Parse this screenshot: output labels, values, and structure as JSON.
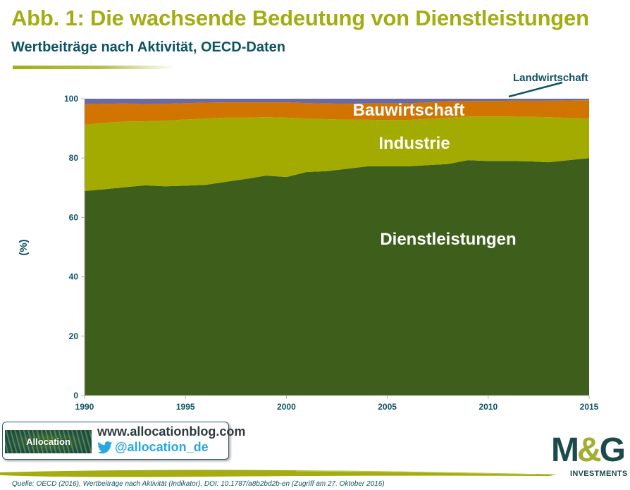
{
  "header": {
    "title": "Abb. 1: Die wachsende Bedeutung von Dienstleistungen",
    "subtitle": "Wertbeiträge nach Aktivität, OECD-Daten"
  },
  "chart_data": {
    "type": "area",
    "stacked": true,
    "title": "Abb. 1: Die wachsende Bedeutung von Dienstleistungen",
    "subtitle": "Wertbeiträge nach Aktivität, OECD-Daten",
    "xlabel": "",
    "ylabel": "(%)",
    "xlim": [
      1990,
      2015
    ],
    "ylim": [
      0,
      100
    ],
    "x_ticks": [
      "1990",
      "1995",
      "2000",
      "2005",
      "2010",
      "2015"
    ],
    "y_ticks": [
      "0",
      "20",
      "40",
      "60",
      "80",
      "100"
    ],
    "grid": false,
    "legend": "inline labels",
    "x": [
      1990,
      1991,
      1992,
      1993,
      1994,
      1995,
      1996,
      1997,
      1998,
      1999,
      2000,
      2001,
      2002,
      2003,
      2004,
      2005,
      2006,
      2007,
      2008,
      2009,
      2010,
      2011,
      2012,
      2013,
      2014,
      2015
    ],
    "series": [
      {
        "name": "Dienstleistungen",
        "color": "#3d5f1b",
        "values": [
          68.9,
          69.5,
          70.2,
          70.8,
          70.5,
          70.7,
          71.0,
          72.0,
          73.0,
          74.1,
          73.6,
          75.3,
          75.6,
          76.4,
          77.2,
          77.2,
          77.2,
          77.6,
          78.0,
          79.3,
          79.0,
          79.0,
          78.9,
          78.6,
          79.3,
          80.0
        ]
      },
      {
        "name": "Industrie",
        "color": "#a3ab00",
        "values": [
          22.3,
          22.4,
          22.1,
          21.6,
          22.1,
          22.3,
          22.3,
          21.6,
          20.6,
          19.7,
          20.0,
          18.0,
          17.5,
          16.5,
          15.7,
          15.6,
          15.6,
          15.6,
          15.6,
          14.7,
          15.0,
          15.0,
          15.0,
          15.2,
          14.2,
          13.3
        ]
      },
      {
        "name": "Bauwirtschaft",
        "color": "#d27400",
        "values": [
          6.9,
          6.4,
          6.1,
          5.8,
          5.7,
          5.5,
          5.4,
          5.2,
          5.2,
          5.0,
          5.2,
          5.2,
          5.3,
          5.4,
          5.5,
          5.6,
          5.6,
          5.6,
          5.5,
          5.2,
          5.2,
          5.3,
          5.4,
          5.5,
          5.9,
          6.2
        ]
      },
      {
        "name": "Landwirtschaft",
        "color": "#6b6aa5",
        "values": [
          1.9,
          1.7,
          1.6,
          1.8,
          1.7,
          1.5,
          1.3,
          1.2,
          1.2,
          1.2,
          1.2,
          1.5,
          1.6,
          1.7,
          1.6,
          1.6,
          1.6,
          1.2,
          0.9,
          0.8,
          0.8,
          0.7,
          0.7,
          0.7,
          0.6,
          0.5
        ]
      }
    ],
    "annotations": [
      "Landwirtschaft",
      "Bauwirtschaft",
      "Industrie",
      "Dienstleistungen"
    ]
  },
  "footer": {
    "site_url": "www.allocationblog.com",
    "twitter_handle": "@allocation_de",
    "allocation_logo_text": "Allocation",
    "source": "Quelle: OECD (2016), Wertbeiträge nach Aktivität (Indikator). DOI: 10.1787/a8b2bd2b-en (Zugriff am 27. Oktober 2016)",
    "mg_logo_text": "M&G",
    "mg_logo_sub": "INVESTMENTS"
  },
  "colors": {
    "title": "#a3ad12",
    "subtitle": "#0e5363",
    "axis_text": "#0e5363",
    "twitter": "#29a8e0"
  }
}
